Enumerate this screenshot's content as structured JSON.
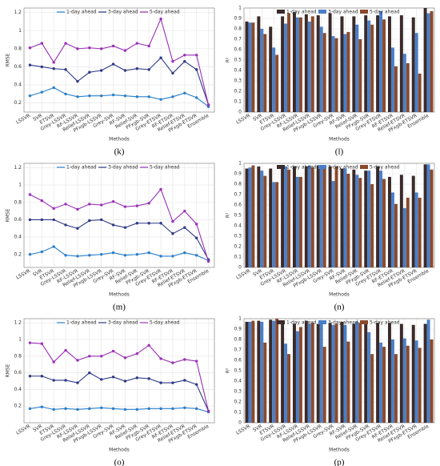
{
  "chart_data": [
    {
      "type": "line",
      "label": "(k)",
      "xlabel": "Methods",
      "ylabel": "RMSE",
      "categories": [
        "LSSVR",
        "SVR",
        "ETSVR",
        "Grey-LSSVR",
        "RF-LSSVR",
        "Relief-LSSVR",
        "PFxgb-LSSVR",
        "Grey-SVR",
        "RF-SVR",
        "Relief-SVR",
        "PFxgb-SVR",
        "Grey-ETSVR",
        "RF-ETSVR",
        "Relief-ETSVR",
        "PFxgb-ETSVR",
        "Ensemble"
      ],
      "series": [
        {
          "name": "1-day ahead",
          "color": "#2a7fc9",
          "values": [
            0.28,
            0.32,
            0.37,
            0.3,
            0.27,
            0.28,
            0.28,
            0.29,
            0.28,
            0.27,
            0.27,
            0.24,
            0.27,
            0.31,
            0.26,
            0.16
          ]
        },
        {
          "name": "3-day ahead",
          "color": "#2e3a87",
          "values": [
            0.62,
            0.6,
            0.58,
            0.57,
            0.44,
            0.54,
            0.56,
            0.63,
            0.56,
            0.58,
            0.57,
            0.7,
            0.53,
            0.66,
            0.57,
            0.18
          ]
        },
        {
          "name": "5-day ahead",
          "color": "#9b30b8",
          "values": [
            0.81,
            0.86,
            0.65,
            0.86,
            0.8,
            0.81,
            0.8,
            0.83,
            0.78,
            0.86,
            0.83,
            1.13,
            0.66,
            0.73,
            0.73,
            0.18
          ]
        }
      ],
      "ylim": [
        0.1,
        1.25
      ],
      "yticks": [
        0.2,
        0.4,
        0.6,
        0.8,
        1,
        1.2
      ],
      "grid": true
    },
    {
      "type": "bar",
      "label": "(l)",
      "xlabel": "Methods",
      "ylabel": "R²",
      "categories": [
        "LSSVR",
        "SVR",
        "ETSVR",
        "Grey-LSSVR",
        "RF-LSSVR",
        "Relief-LSSVR",
        "PFxgb-LSSVR",
        "Grey-SVR",
        "RF-SVR",
        "Relief-SVR",
        "PFxgb-SVR",
        "Grey-ETSVR",
        "RF-ETSVR",
        "Relief-ETSVR",
        "PFxgb-ETSVR",
        "Ensemble"
      ],
      "series": [
        {
          "name": "1-day ahead",
          "color": "#3b2a2a",
          "values": [
            0.87,
            0.92,
            0.82,
            0.92,
            0.96,
            0.94,
            0.93,
            0.95,
            0.92,
            0.92,
            0.93,
            0.93,
            0.92,
            0.93,
            0.91,
            1.0
          ]
        },
        {
          "name": "3-day ahead",
          "color": "#4a7fc8",
          "values": [
            0.86,
            0.8,
            0.62,
            0.85,
            0.91,
            0.87,
            0.82,
            0.73,
            0.75,
            0.84,
            0.88,
            0.97,
            0.62,
            0.56,
            0.76,
            0.95
          ]
        },
        {
          "name": "5-day ahead",
          "color": "#8b4a2b",
          "values": [
            0.86,
            0.75,
            0.55,
            0.95,
            0.91,
            0.92,
            0.76,
            0.71,
            0.77,
            0.7,
            0.84,
            0.89,
            0.44,
            0.47,
            0.37,
            0.97
          ]
        }
      ],
      "ylim": [
        0,
        1
      ],
      "yticks": [
        0,
        0.1,
        0.2,
        0.3,
        0.4,
        0.5,
        0.6,
        0.7,
        0.8,
        0.9,
        1
      ],
      "grid": true
    },
    {
      "type": "line",
      "label": "(m)",
      "xlabel": "Methods",
      "ylabel": "RMSE",
      "categories": [
        "LSSVR",
        "SVR",
        "ETSVR",
        "Grey-LSSVR",
        "RF-LSSVR",
        "Relief-LSSVR",
        "PFxgb-LSSVR",
        "Grey-SVR",
        "RF-SVR",
        "Relief-SVR",
        "PFxgb-SVR",
        "Grey-ETSVR",
        "RF-ETSVR",
        "Relief-ETSVR",
        "PFxgb-ETSVR",
        "Ensemble"
      ],
      "series": [
        {
          "name": "1-day ahead",
          "color": "#2a7fc9",
          "values": [
            0.2,
            0.23,
            0.29,
            0.19,
            0.18,
            0.19,
            0.2,
            0.22,
            0.19,
            0.2,
            0.22,
            0.18,
            0.18,
            0.22,
            0.19,
            0.13
          ]
        },
        {
          "name": "3-day ahead",
          "color": "#2e3a87",
          "values": [
            0.6,
            0.6,
            0.6,
            0.54,
            0.5,
            0.59,
            0.6,
            0.54,
            0.51,
            0.56,
            0.56,
            0.56,
            0.44,
            0.51,
            0.39,
            0.14
          ]
        },
        {
          "name": "5-day ahead",
          "color": "#9b30b8",
          "values": [
            0.89,
            0.82,
            0.73,
            0.78,
            0.72,
            0.78,
            0.77,
            0.81,
            0.75,
            0.76,
            0.79,
            0.95,
            0.58,
            0.7,
            0.55,
            0.12
          ]
        }
      ],
      "ylim": [
        0.05,
        1.25
      ],
      "yticks": [
        0.2,
        0.4,
        0.6,
        0.8,
        1,
        1.2
      ],
      "grid": true
    },
    {
      "type": "bar",
      "label": "(n)",
      "xlabel": "Methods",
      "ylabel": "R²",
      "categories": [
        "LSSVR",
        "SVR",
        "ETSVR",
        "Grey-LSSVR",
        "RF-LSSVR",
        "Relief-LSSVR",
        "PFxgb-LSSVR",
        "Grey-SVR",
        "RF-SVR",
        "Relief-SVR",
        "PFxgb-SVR",
        "Grey-ETSVR",
        "RF-ETSVR",
        "Relief-ETSVR",
        "PFxgb-ETSVR",
        "Ensemble"
      ],
      "series": [
        {
          "name": "1-day ahead",
          "color": "#3b2a2a",
          "values": [
            0.95,
            0.97,
            0.95,
            0.96,
            0.97,
            0.97,
            0.98,
            0.97,
            0.95,
            0.94,
            0.93,
            0.97,
            0.87,
            0.89,
            0.88,
            0.99
          ]
        },
        {
          "name": "3-day ahead",
          "color": "#4a7fc8",
          "values": [
            0.96,
            0.93,
            0.82,
            0.97,
            0.87,
            0.98,
            0.98,
            0.83,
            0.95,
            0.89,
            0.93,
            0.93,
            0.72,
            0.57,
            0.72,
            0.99
          ]
        },
        {
          "name": "5-day ahead",
          "color": "#8b4a2b",
          "values": [
            0.98,
            0.88,
            0.82,
            0.94,
            0.87,
            0.96,
            0.97,
            0.97,
            0.9,
            0.86,
            0.8,
            0.85,
            0.61,
            0.67,
            0.67,
            0.94
          ]
        }
      ],
      "ylim": [
        0,
        1
      ],
      "yticks": [
        0,
        0.1,
        0.2,
        0.3,
        0.4,
        0.5,
        0.6,
        0.7,
        0.8,
        0.9,
        1
      ],
      "grid": true
    },
    {
      "type": "line",
      "label": "(o)",
      "xlabel": "Methods",
      "ylabel": "RMSE",
      "categories": [
        "LSSVR",
        "SVR",
        "ETSVR",
        "Grey-LSSVR",
        "RF-LSSVR",
        "Relief-LSSVR",
        "PFxgb-LSSVR",
        "Grey-SVR",
        "RF-SVR",
        "Relief-SVR",
        "PFxgb-SVR",
        "Grey-ETSVR",
        "RF-ETSVR",
        "Relief-ETSVR",
        "PFxgb-ETSVR",
        "Ensemble"
      ],
      "series": [
        {
          "name": "1-day ahead",
          "color": "#2a7fc9",
          "values": [
            0.17,
            0.19,
            0.16,
            0.17,
            0.16,
            0.17,
            0.18,
            0.17,
            0.16,
            0.16,
            0.17,
            0.17,
            0.17,
            0.18,
            0.17,
            0.13
          ]
        },
        {
          "name": "3-day ahead",
          "color": "#2e3a87",
          "values": [
            0.56,
            0.56,
            0.51,
            0.51,
            0.48,
            0.6,
            0.52,
            0.55,
            0.5,
            0.54,
            0.53,
            0.48,
            0.48,
            0.51,
            0.46,
            0.14
          ]
        },
        {
          "name": "5-day ahead",
          "color": "#9b30b8",
          "values": [
            0.96,
            0.95,
            0.73,
            0.87,
            0.75,
            0.8,
            0.8,
            0.86,
            0.78,
            0.83,
            0.93,
            0.77,
            0.72,
            0.76,
            0.74,
            0.14
          ]
        }
      ],
      "ylim": [
        0,
        1.25
      ],
      "yticks": [
        0.2,
        0.4,
        0.6,
        0.8,
        1,
        1.2
      ],
      "grid": true
    },
    {
      "type": "bar",
      "label": "(p)",
      "xlabel": "Methods",
      "ylabel": "R²",
      "categories": [
        "LSSVR",
        "SVR",
        "ETSVR",
        "Grey-LSSVR",
        "RF-LSSVR",
        "Relief-LSSVR",
        "PFxgb-LSSVR",
        "Grey-SVR",
        "RF-SVR",
        "Relief-SVR",
        "PFxgb-SVR",
        "Grey-ETSVR",
        "RF-ETSVR",
        "Relief-ETSVR",
        "PFxgb-ETSVR",
        "Ensemble"
      ],
      "series": [
        {
          "name": "1-day ahead",
          "color": "#3b2a2a",
          "values": [
            0.97,
            0.98,
            0.99,
            0.96,
            0.95,
            0.98,
            0.95,
            0.96,
            0.97,
            0.95,
            0.95,
            0.96,
            0.96,
            0.95,
            0.94,
            0.95
          ]
        },
        {
          "name": "3-day ahead",
          "color": "#4a7fc8",
          "values": [
            0.97,
            0.97,
            0.98,
            0.76,
            0.88,
            0.95,
            0.98,
            0.94,
            0.94,
            0.97,
            0.87,
            0.77,
            0.8,
            0.81,
            0.79,
            0.99
          ]
        },
        {
          "name": "5-day ahead",
          "color": "#8b4a2b",
          "values": [
            0.98,
            0.77,
            1.0,
            0.66,
            0.92,
            0.96,
            0.73,
            0.95,
            0.78,
            0.96,
            0.66,
            0.73,
            0.66,
            0.74,
            0.72,
            0.8
          ]
        }
      ],
      "ylim": [
        0,
        1
      ],
      "yticks": [
        0,
        0.1,
        0.2,
        0.3,
        0.4,
        0.5,
        0.6,
        0.7,
        0.8,
        0.9,
        1
      ],
      "grid": true
    }
  ]
}
